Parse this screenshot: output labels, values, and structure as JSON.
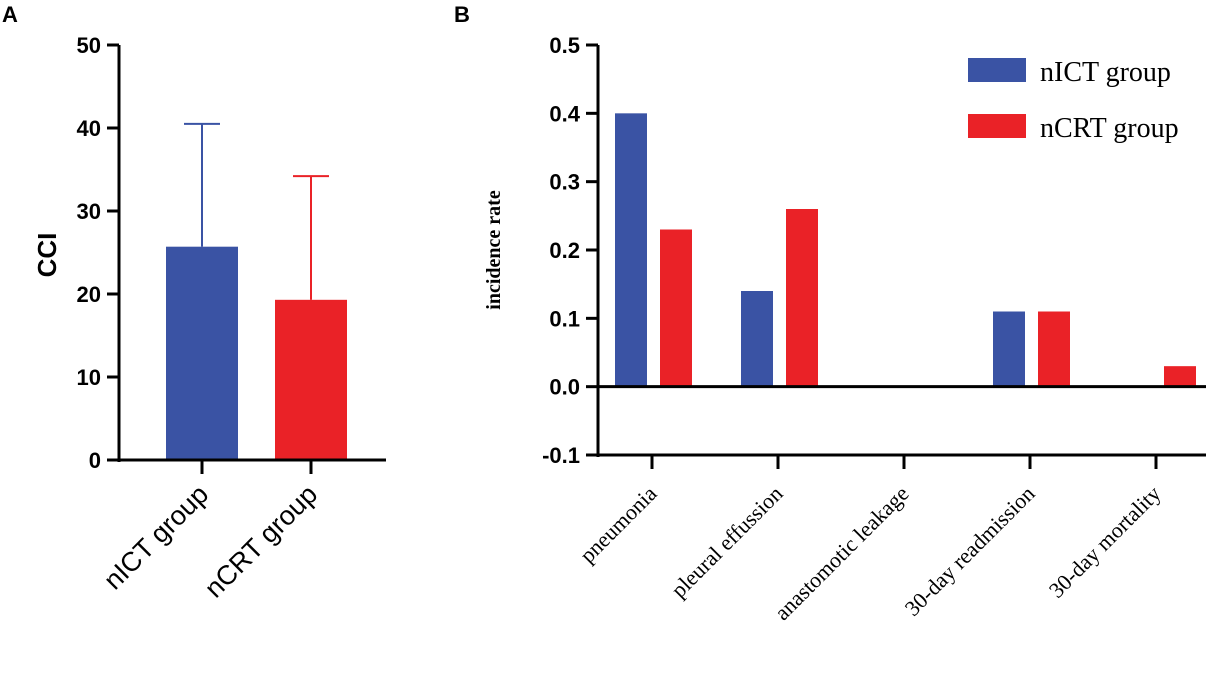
{
  "colors": {
    "nICT": "#3a53a4",
    "nCRT": "#ea2227"
  },
  "chart_data": [
    {
      "panel": "A",
      "type": "bar",
      "title": "",
      "ylabel": "CCI",
      "xlabel": "",
      "ylim": [
        0,
        50
      ],
      "yticks": [
        0,
        10,
        20,
        30,
        40,
        50
      ],
      "ytick_labels": [
        "0",
        "10",
        "20",
        "30",
        "40",
        "50"
      ],
      "categories": [
        "nICT group",
        "nCRT group"
      ],
      "values": [
        25.7,
        19.3
      ],
      "error_upper": [
        40.5,
        34.2
      ],
      "colors": [
        "#3a53a4",
        "#ea2227"
      ]
    },
    {
      "panel": "B",
      "type": "bar",
      "title": "",
      "ylabel": "incidence rate",
      "xlabel": "",
      "ylim": [
        -0.1,
        0.5
      ],
      "yticks": [
        -0.1,
        0.0,
        0.1,
        0.2,
        0.3,
        0.4,
        0.5
      ],
      "ytick_labels": [
        "-0.1",
        "0.0",
        "0.1",
        "0.2",
        "0.3",
        "0.4",
        "0.5"
      ],
      "categories": [
        "pneumonia",
        "pleural effussion",
        "anastomotic leakage",
        "30-day readmission",
        "30-day mortality"
      ],
      "series": [
        {
          "name": "nICT group",
          "color": "#3a53a4",
          "values": [
            0.4,
            0.14,
            0.0,
            0.11,
            0.0
          ]
        },
        {
          "name": "nCRT group",
          "color": "#ea2227",
          "values": [
            0.23,
            0.26,
            0.0,
            0.11,
            0.03
          ]
        }
      ],
      "legend_position": "top-right"
    }
  ]
}
